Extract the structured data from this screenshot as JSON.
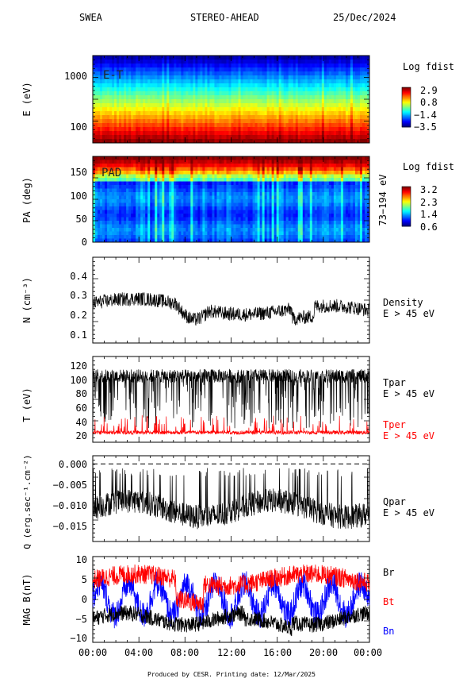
{
  "header": {
    "left": "SWEA",
    "center": "STEREO-AHEAD",
    "right": "25/Dec/2024"
  },
  "footer": "Produced by CESR.   Printing date: 12/Mar/2025",
  "chart_data": [
    {
      "type": "heatmap",
      "name": "energy-spectrogram",
      "ylabel": "E (eV)",
      "yscale": "log",
      "yticks": [
        "1000",
        "100"
      ],
      "annotation": "E-T",
      "colorbar": {
        "title": "Log fdist",
        "ticks": [
          "2.9",
          "0.8",
          "−1.4",
          "−3.5"
        ]
      }
    },
    {
      "type": "heatmap",
      "name": "pitch-angle-spectrogram",
      "ylabel": "PA (deg)",
      "ylim": [
        0,
        180
      ],
      "yticks": [
        "150",
        "100",
        "50",
        "0"
      ],
      "annotation": "PAD",
      "right_label": "73−194 eV",
      "colorbar": {
        "title": "Log fdist",
        "ticks": [
          "3.2",
          "2.3",
          "1.4",
          "0.6"
        ]
      }
    },
    {
      "type": "line",
      "name": "density",
      "ylabel": "N (cm⁻³)",
      "ylim": [
        0.07,
        0.5
      ],
      "yticks": [
        "0.4",
        "0.3",
        "0.2",
        "0.1"
      ],
      "series": [
        {
          "name": "Density",
          "sub": "E > 45 eV",
          "color": "#000000"
        }
      ]
    },
    {
      "type": "line",
      "name": "temperature",
      "ylabel": "T (eV)",
      "ylim": [
        12,
        126
      ],
      "yticks": [
        "120",
        "100",
        "80",
        "60",
        "40",
        "20"
      ],
      "series": [
        {
          "name": "Tpar",
          "sub": "E > 45 eV",
          "color": "#000000"
        },
        {
          "name": "Tper",
          "sub": "E > 45 eV",
          "color": "#ff0000"
        }
      ]
    },
    {
      "type": "line",
      "name": "heat-flux",
      "ylabel": "Q (erg.sec⁻¹.cm⁻²)",
      "ylim": [
        -0.019,
        0.002
      ],
      "yticks": [
        "0.000",
        "−0.005",
        "−0.010",
        "−0.015"
      ],
      "series": [
        {
          "name": "Qpar",
          "sub": "E > 45 eV",
          "color": "#000000"
        }
      ]
    },
    {
      "type": "line",
      "name": "magnetic-field",
      "ylabel": "MAG B(nT)",
      "ylim": [
        -11,
        11
      ],
      "yticks": [
        "10",
        "5",
        "0",
        "−5",
        "−10"
      ],
      "series": [
        {
          "name": "Br",
          "color": "#000000"
        },
        {
          "name": "Bt",
          "color": "#ff0000"
        },
        {
          "name": "Bn",
          "color": "#0000ff"
        }
      ]
    }
  ],
  "time_axis": {
    "ticks": [
      "00:00",
      "04:00",
      "08:00",
      "12:00",
      "16:00",
      "20:00",
      "00:00"
    ]
  }
}
